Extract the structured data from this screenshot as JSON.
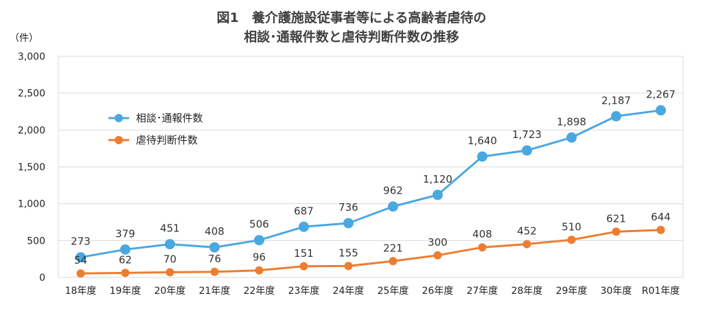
{
  "chart_data": {
    "type": "line",
    "title_line1": "図1　養介護施設従事者等による高齢者虐待の",
    "title_line2": "相談･通報件数と虐待判断件数の推移",
    "ylabel": "（件）",
    "xlabel": "",
    "ylim": [
      0,
      3000
    ],
    "yticks": [
      0,
      500,
      1000,
      1500,
      2000,
      2500,
      3000
    ],
    "ytick_labels": [
      "0",
      "500",
      "1,000",
      "1,500",
      "2,000",
      "2,500",
      "3,000"
    ],
    "grid": true,
    "legend_position": "upper-left",
    "categories": [
      "18年度",
      "19年度",
      "20年度",
      "21年度",
      "22年度",
      "23年度",
      "24年度",
      "25年度",
      "26年度",
      "27年度",
      "28年度",
      "29年度",
      "30年度",
      "R01年度"
    ],
    "series": [
      {
        "name": "相談･通報件数",
        "color": "#4aa8e0",
        "values": [
          273,
          379,
          451,
          408,
          506,
          687,
          736,
          962,
          1120,
          1640,
          1723,
          1898,
          2187,
          2267
        ],
        "labels": [
          "273",
          "379",
          "451",
          "408",
          "506",
          "687",
          "736",
          "962",
          "1,120",
          "1,640",
          "1,723",
          "1,898",
          "2,187",
          "2,267"
        ]
      },
      {
        "name": "虐待判断件数",
        "color": "#ed7d31",
        "values": [
          54,
          62,
          70,
          76,
          96,
          151,
          155,
          221,
          300,
          408,
          452,
          510,
          621,
          644
        ],
        "labels": [
          "54",
          "62",
          "70",
          "76",
          "96",
          "151",
          "155",
          "221",
          "300",
          "408",
          "452",
          "510",
          "621",
          "644"
        ]
      }
    ]
  }
}
